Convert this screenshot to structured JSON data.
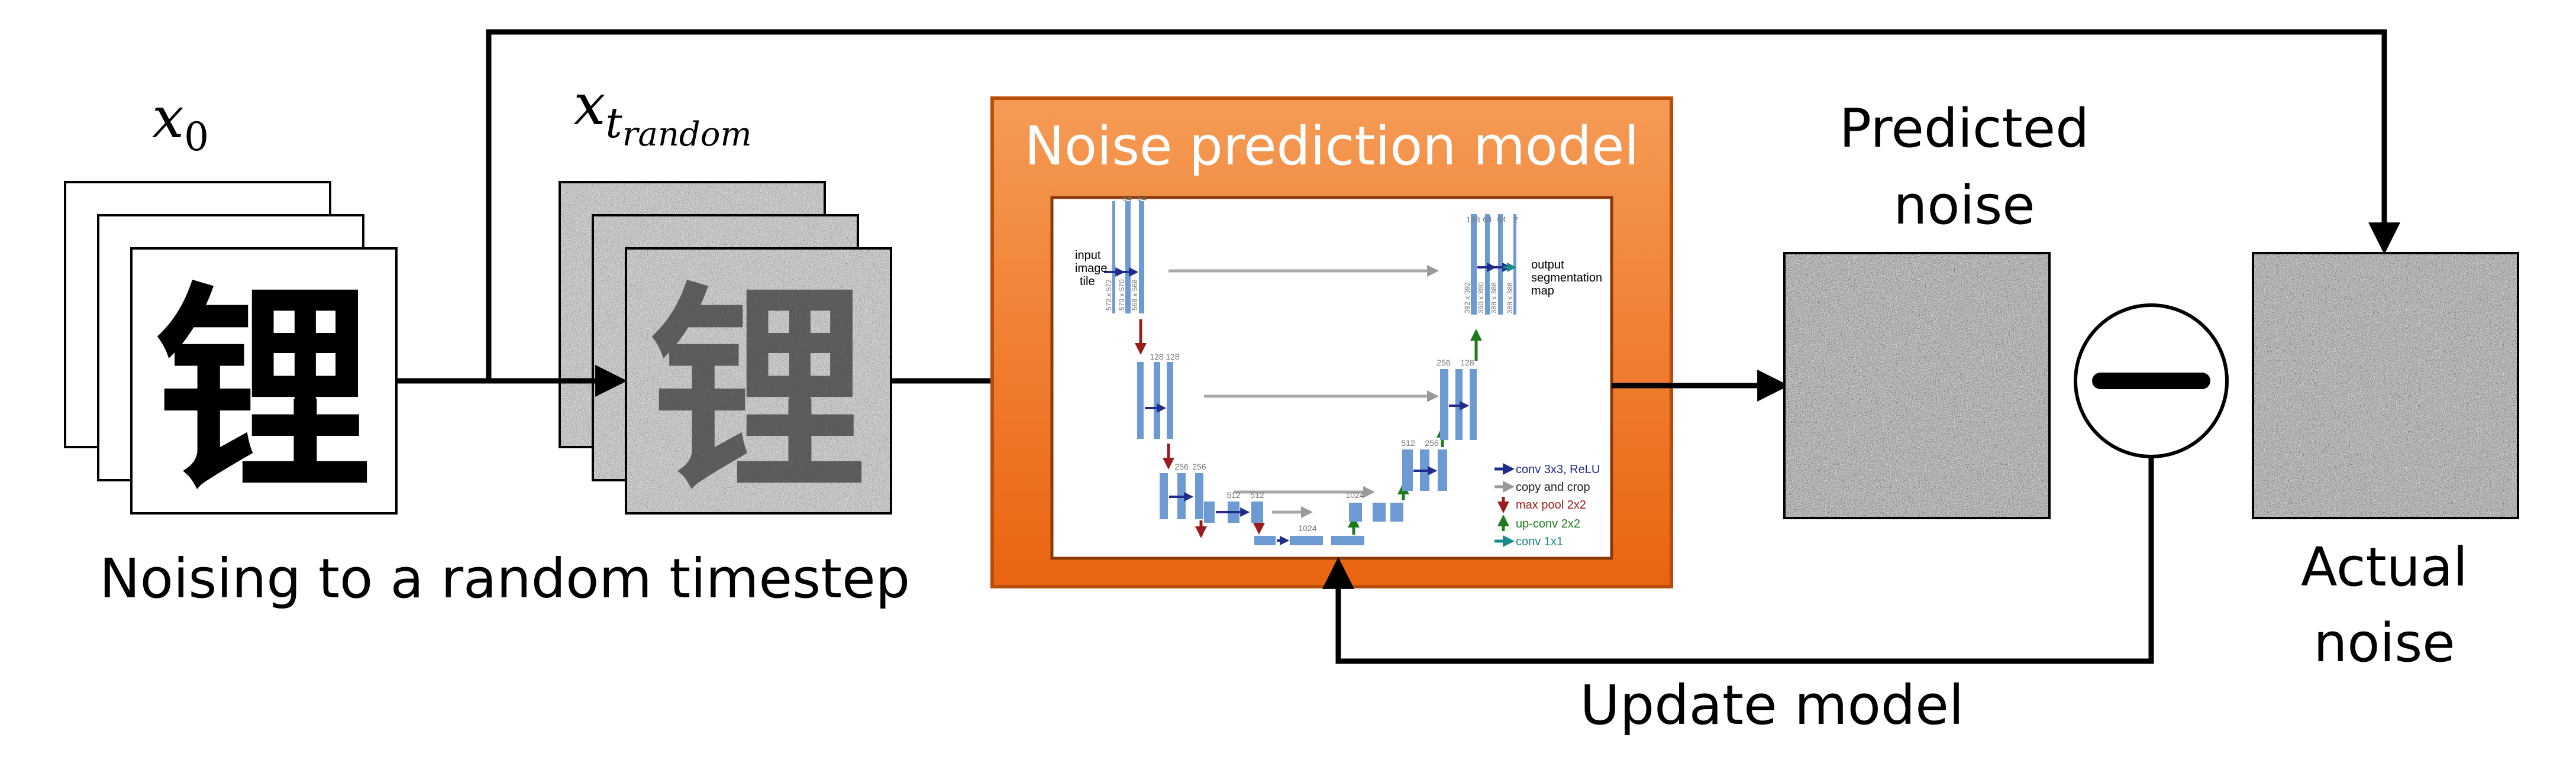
{
  "labels": {
    "x0_main": "x",
    "x0_sub": "0",
    "xt_main": "x",
    "xt_sub": "t",
    "xt_subsub": "random",
    "noising": "Noising to a random timestep",
    "model_title": "Noise prediction model",
    "predicted_line1": "Predicted",
    "predicted_line2": "noise",
    "actual_line1": "Actual",
    "actual_line2": "noise",
    "update": "Update model",
    "glyph": "锂"
  },
  "unet": {
    "input_label_1": "input",
    "input_label_2": "image",
    "input_label_3": "tile",
    "output_label_1": "output",
    "output_label_2": "segmentation",
    "output_label_3": "map",
    "legend": [
      {
        "text": "conv 3x3, ReLU",
        "color": "#1f2c8c"
      },
      {
        "text": "copy and crop",
        "color": "#888888"
      },
      {
        "text": "max pool 2x2",
        "color": "#9b1c1c"
      },
      {
        "text": "up-conv 2x2",
        "color": "#1e7b1e"
      },
      {
        "text": "conv 1x1",
        "color": "#1a8a8a"
      }
    ],
    "counts": {
      "c64a": "64",
      "c64b": "64",
      "c128a": "128",
      "c128b": "128",
      "c256a": "256",
      "c256b": "256",
      "c512a": "512",
      "c512b": "512",
      "c1024": "1024",
      "d512": "512",
      "d256": "256",
      "d128": "128",
      "o128": "128",
      "o64a": "64",
      "o64b": "64",
      "o2": "2",
      "b1024": "1024"
    },
    "sizes": {
      "s572": "572 x 572",
      "s570": "570 x 570",
      "s568": "568 x 568",
      "s392": "392 x 392",
      "s390": "390 x 390",
      "s388a": "388 x 388",
      "s388b": "388 x 388"
    }
  },
  "colors": {
    "model_fill_top": "#f5a05a",
    "model_fill_bottom": "#ec6a14",
    "model_border": "#b94e0c",
    "unet_blue": "#6d9ad2"
  }
}
